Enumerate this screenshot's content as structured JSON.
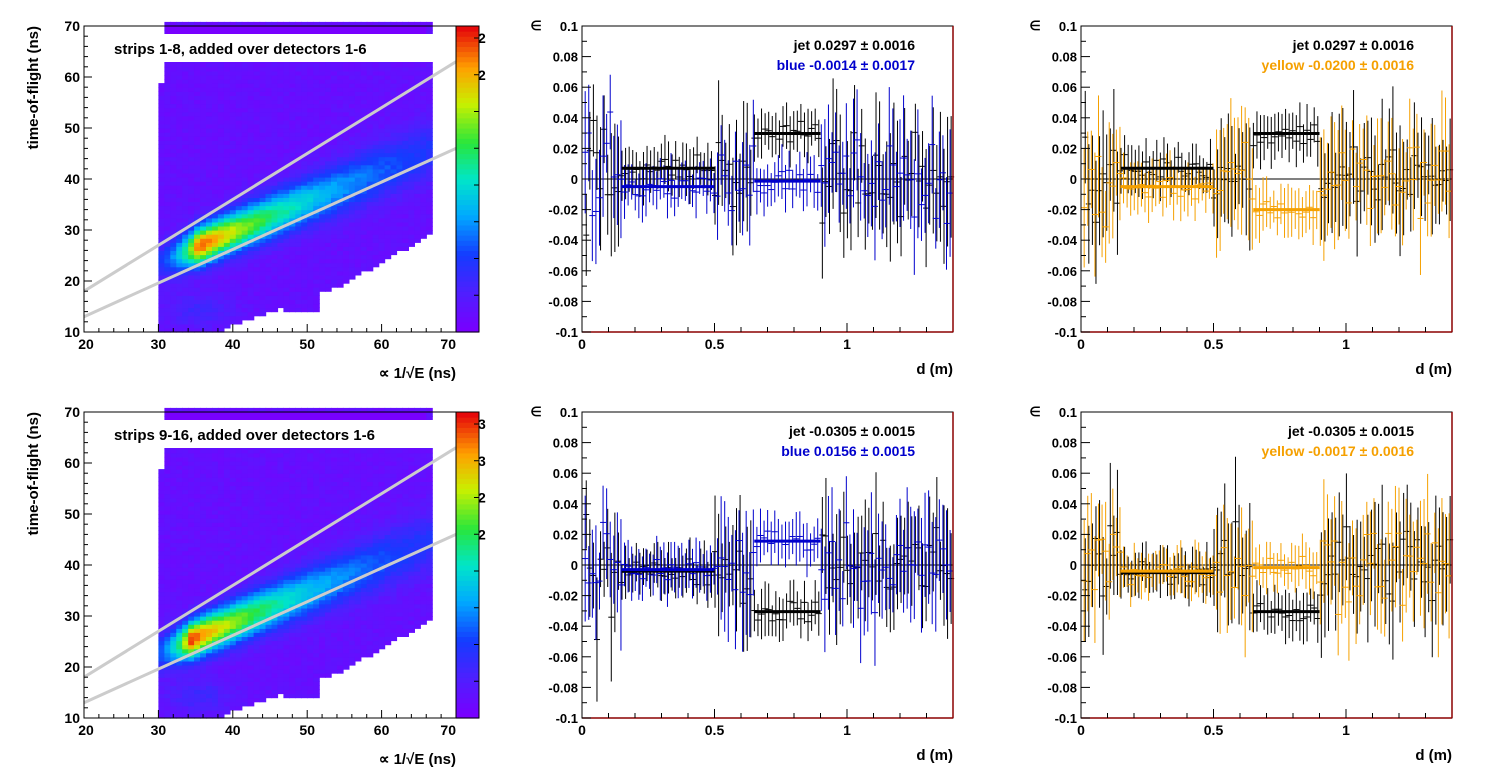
{
  "chart_data": [
    {
      "type": "heatmap",
      "xlabel": "∝ 1/√E (ns)",
      "ylabel": "time-of-flight (ns)",
      "annotation": "strips 1-8, added over detectors 1-6",
      "xlim": [
        20,
        70
      ],
      "ylim": [
        10,
        70
      ],
      "x_ticks": [
        "20",
        "30",
        "40",
        "50",
        "60",
        "70"
      ],
      "y_ticks": [
        "10",
        "20",
        "30",
        "40",
        "50",
        "60",
        "70"
      ],
      "peak": [
        35,
        26.5
      ],
      "cut_lines": [
        {
          "x1": 20,
          "y1": 18,
          "x2": 70,
          "y2": 63
        },
        {
          "x1": 20,
          "y1": 13,
          "x2": 70,
          "y2": 46
        }
      ],
      "palette": "rainbow (violet low → red high)",
      "colorbar_tick_labels": [
        "2",
        "2",
        "",
        "",
        "",
        "",
        "",
        "",
        ""
      ]
    },
    {
      "type": "scatter",
      "xlabel": "d (m)",
      "ylabel": "∈",
      "xlim": [
        0,
        1.4
      ],
      "ylim": [
        -0.1,
        0.1
      ],
      "x_ticks": [
        "0",
        "0.5",
        "1"
      ],
      "y_ticks": [
        "-0.1",
        "-0.08",
        "-0.06",
        "-0.04",
        "-0.02",
        "0",
        "0.02",
        "0.04",
        "0.06",
        "0.08",
        "0.1"
      ],
      "legend": [
        {
          "label": "jet  0.0297 ± 0.0016",
          "color": "#000000"
        },
        {
          "label": "blue -0.0014 ± 0.0017",
          "color": "#0000cc"
        }
      ],
      "series": [
        {
          "name": "jet",
          "color": "#000000",
          "segments": [
            {
              "x0": 0.15,
              "x1": 0.5,
              "y": 0.007
            },
            {
              "x0": 0.65,
              "x1": 0.9,
              "y": 0.0297
            }
          ]
        },
        {
          "name": "blue",
          "color": "#0000cc",
          "segments": [
            {
              "x0": 0.15,
              "x1": 0.5,
              "y": -0.005
            },
            {
              "x0": 0.65,
              "x1": 0.9,
              "y": -0.0014
            }
          ]
        }
      ]
    },
    {
      "type": "scatter",
      "xlabel": "d (m)",
      "ylabel": "∈",
      "xlim": [
        0,
        1.4
      ],
      "ylim": [
        -0.1,
        0.1
      ],
      "x_ticks": [
        "0",
        "0.5",
        "1"
      ],
      "y_ticks": [
        "-0.1",
        "-0.08",
        "-0.06",
        "-0.04",
        "-0.02",
        "0",
        "0.02",
        "0.04",
        "0.06",
        "0.08",
        "0.1"
      ],
      "legend": [
        {
          "label": "jet  0.0297 ± 0.0016",
          "color": "#000000"
        },
        {
          "label": "yellow -0.0200 ± 0.0016",
          "color": "#f5a000"
        }
      ],
      "series": [
        {
          "name": "jet",
          "color": "#000000",
          "segments": [
            {
              "x0": 0.15,
              "x1": 0.5,
              "y": 0.007
            },
            {
              "x0": 0.65,
              "x1": 0.9,
              "y": 0.0297
            }
          ]
        },
        {
          "name": "yellow",
          "color": "#f5a000",
          "segments": [
            {
              "x0": 0.15,
              "x1": 0.5,
              "y": -0.005
            },
            {
              "x0": 0.65,
              "x1": 0.9,
              "y": -0.02
            }
          ]
        }
      ]
    },
    {
      "type": "heatmap",
      "xlabel": "∝ 1/√E (ns)",
      "ylabel": "time-of-flight (ns)",
      "annotation": "strips 9-16, added over detectors 1-6",
      "xlim": [
        20,
        70
      ],
      "ylim": [
        10,
        70
      ],
      "x_ticks": [
        "20",
        "30",
        "40",
        "50",
        "60",
        "70"
      ],
      "y_ticks": [
        "10",
        "20",
        "30",
        "40",
        "50",
        "60",
        "70"
      ],
      "peak": [
        34,
        25
      ],
      "cut_lines": [
        {
          "x1": 20,
          "y1": 18,
          "x2": 70,
          "y2": 63
        },
        {
          "x1": 20,
          "y1": 13,
          "x2": 70,
          "y2": 46
        }
      ],
      "palette": "rainbow (violet low → red high)",
      "colorbar_tick_labels": [
        "3",
        "3",
        "2",
        "2",
        "",
        "",
        "",
        "",
        ""
      ]
    },
    {
      "type": "scatter",
      "xlabel": "d (m)",
      "ylabel": "∈",
      "xlim": [
        0,
        1.4
      ],
      "ylim": [
        -0.1,
        0.1
      ],
      "x_ticks": [
        "0",
        "0.5",
        "1"
      ],
      "y_ticks": [
        "-0.1",
        "-0.08",
        "-0.06",
        "-0.04",
        "-0.02",
        "0",
        "0.02",
        "0.04",
        "0.06",
        "0.08",
        "0.1"
      ],
      "legend": [
        {
          "label": "jet -0.0305 ± 0.0015",
          "color": "#000000"
        },
        {
          "label": "blue  0.0156 ± 0.0015",
          "color": "#0000cc"
        }
      ],
      "series": [
        {
          "name": "jet",
          "color": "#000000",
          "segments": [
            {
              "x0": 0.15,
              "x1": 0.5,
              "y": -0.004
            },
            {
              "x0": 0.65,
              "x1": 0.9,
              "y": -0.0305
            }
          ]
        },
        {
          "name": "blue",
          "color": "#0000cc",
          "segments": [
            {
              "x0": 0.15,
              "x1": 0.5,
              "y": -0.003
            },
            {
              "x0": 0.65,
              "x1": 0.9,
              "y": 0.0156
            }
          ]
        }
      ]
    },
    {
      "type": "scatter",
      "xlabel": "d (m)",
      "ylabel": "∈",
      "xlim": [
        0,
        1.4
      ],
      "ylim": [
        -0.1,
        0.1
      ],
      "x_ticks": [
        "0",
        "0.5",
        "1"
      ],
      "y_ticks": [
        "-0.1",
        "-0.08",
        "-0.06",
        "-0.04",
        "-0.02",
        "0",
        "0.02",
        "0.04",
        "0.06",
        "0.08",
        "0.1"
      ],
      "legend": [
        {
          "label": "jet -0.0305 ± 0.0015",
          "color": "#000000"
        },
        {
          "label": "yellow -0.0017 ± 0.0016",
          "color": "#f5a000"
        }
      ],
      "series": [
        {
          "name": "jet",
          "color": "#000000",
          "segments": [
            {
              "x0": 0.15,
              "x1": 0.5,
              "y": -0.005
            },
            {
              "x0": 0.65,
              "x1": 0.9,
              "y": -0.0305
            }
          ]
        },
        {
          "name": "yellow",
          "color": "#f5a000",
          "segments": [
            {
              "x0": 0.15,
              "x1": 0.5,
              "y": -0.004
            },
            {
              "x0": 0.65,
              "x1": 0.9,
              "y": -0.0017
            }
          ]
        }
      ]
    }
  ]
}
